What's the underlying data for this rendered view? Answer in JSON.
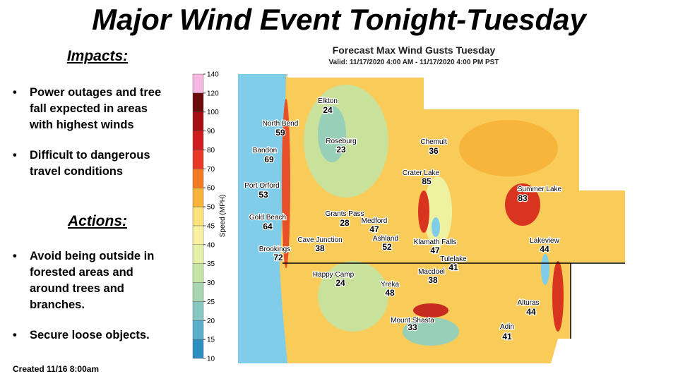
{
  "title": "Major Wind Event Tonight-Tuesday",
  "impacts": {
    "heading": "Impacts:",
    "bullets": [
      "Power outages and tree fall expected in areas with highest winds",
      "Difficult to dangerous travel conditions"
    ]
  },
  "actions": {
    "heading": "Actions:",
    "bullets": [
      "Avoid being outside in forested areas and around trees and branches.",
      "Secure loose objects."
    ]
  },
  "created": "Created 11/16 8:00am",
  "map": {
    "title": "Forecast Max Wind Gusts Tuesday",
    "valid": "Valid: 11/17/2020 4:00 AM - 11/17/2020 4:00 PM PST",
    "colorbar": {
      "label": "Speed (MPH)",
      "ticks": [
        10,
        15,
        20,
        25,
        30,
        35,
        40,
        45,
        50,
        60,
        70,
        80,
        90,
        100,
        120,
        140
      ],
      "colors": [
        "#2c8fc0",
        "#5aaecb",
        "#86c7c2",
        "#a9d6b2",
        "#c6e4a5",
        "#e4f1a6",
        "#f8f2a0",
        "#fce27a",
        "#f9b23a",
        "#f27a22",
        "#e73a29",
        "#cf1d1f",
        "#a30f15",
        "#6a0c0c",
        "#f6b8e0"
      ]
    },
    "locations": [
      {
        "name": "Elkton",
        "value": 24
      },
      {
        "name": "North Bend",
        "value": 59
      },
      {
        "name": "Bandon",
        "value": 69
      },
      {
        "name": "Roseburg",
        "value": 23
      },
      {
        "name": "Chemult",
        "value": 36
      },
      {
        "name": "Crater Lake",
        "value": 85
      },
      {
        "name": "Summer Lake",
        "value": 83
      },
      {
        "name": "Port Orford",
        "value": 53
      },
      {
        "name": "Gold Beach",
        "value": 64
      },
      {
        "name": "Grants Pass",
        "value": 28
      },
      {
        "name": "Medford",
        "value": 47
      },
      {
        "name": "Ashland",
        "value": 52
      },
      {
        "name": "Cave Junction",
        "value": 38
      },
      {
        "name": "Klamath Falls",
        "value": 47
      },
      {
        "name": "Lakeview",
        "value": 44
      },
      {
        "name": "Brookings",
        "value": 72
      },
      {
        "name": "Tulelake",
        "value": 41
      },
      {
        "name": "Happy Camp",
        "value": 24
      },
      {
        "name": "Macdoel",
        "value": 38
      },
      {
        "name": "Yreka",
        "value": 48
      },
      {
        "name": "Alturas",
        "value": 44
      },
      {
        "name": "Mount Shasta",
        "value": 33
      },
      {
        "name": "Adin",
        "value": 41
      }
    ]
  }
}
